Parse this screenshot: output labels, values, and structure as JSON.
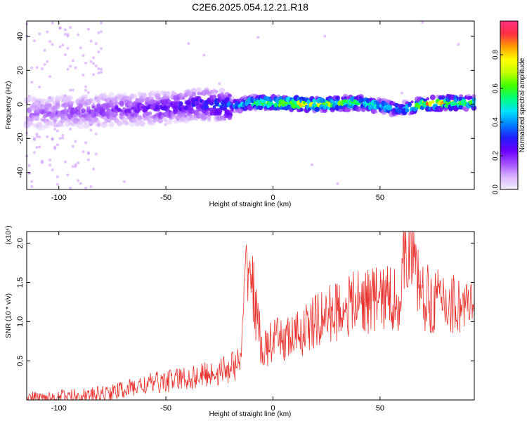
{
  "title": "C2E6.2025.054.12.21.R18",
  "colors": {
    "snr_line": "#e8302b",
    "frame": "#000000",
    "colormap": [
      "#f0f0ff",
      "#d9b3ff",
      "#a24dff",
      "#6a00ff",
      "#1f1fff",
      "#0080ff",
      "#00e0ff",
      "#00ff80",
      "#40ff00",
      "#c0ff00",
      "#ffff00",
      "#ffa000",
      "#ff3040",
      "#ff3080"
    ]
  },
  "chart_data": [
    {
      "type": "heatmap",
      "title": "C2E6.2025.054.12.21.R18",
      "xlabel": "Height of straight line (km)",
      "ylabel": "Frequency (Hz)",
      "xlim": [
        -115,
        94
      ],
      "ylim": [
        -50,
        49
      ],
      "x_ticks": [
        -100,
        -50,
        0,
        50
      ],
      "y_ticks": [
        -40,
        -20,
        0,
        20,
        40
      ],
      "colorbar": {
        "label": "Normalized spectral amplitude",
        "range": [
          0,
          1
        ],
        "ticks": [
          "0.0",
          "0.2",
          "0.4",
          "0.6",
          "0.8"
        ]
      },
      "ridge": {
        "x": [
          -110,
          -90,
          -70,
          -50,
          -35,
          -20,
          -10,
          0,
          20,
          40,
          60,
          70,
          80,
          94
        ],
        "y": [
          -5,
          -4,
          -3,
          -2,
          0,
          -1,
          1,
          1,
          0,
          1,
          -3,
          0,
          1,
          1
        ],
        "peak_amplitude": [
          0.18,
          0.22,
          0.25,
          0.3,
          0.35,
          0.45,
          0.7,
          0.9,
          0.85,
          0.75,
          0.5,
          0.9,
          0.95,
          0.7
        ]
      }
    },
    {
      "type": "line",
      "xlabel": "Height of straight line (km)",
      "ylabel": "SNR (10 * v/v)",
      "y_multiplier": "(x10⁴)",
      "xlim": [
        -115,
        94
      ],
      "ylim": [
        0,
        2.15
      ],
      "x_ticks": [
        -100,
        -50,
        0,
        50
      ],
      "y_ticks": [
        "0.5",
        "1.0",
        "1.5",
        "2.0"
      ],
      "y_tick_values": [
        0.5,
        1.0,
        1.5,
        2.0
      ],
      "series": [
        {
          "x": [
            -115,
            -105,
            -95,
            -85,
            -75,
            -65,
            -55,
            -45,
            -35,
            -25,
            -15,
            -12,
            -5,
            0,
            10,
            20,
            30,
            40,
            50,
            60,
            62,
            70,
            80,
            90,
            94
          ],
          "y": [
            0.02,
            0.03,
            0.05,
            0.06,
            0.1,
            0.16,
            0.22,
            0.26,
            0.3,
            0.36,
            0.48,
            1.9,
            0.6,
            0.75,
            0.8,
            1.0,
            1.15,
            1.25,
            1.3,
            1.3,
            2.15,
            1.3,
            1.25,
            1.2,
            1.1
          ]
        }
      ]
    }
  ]
}
